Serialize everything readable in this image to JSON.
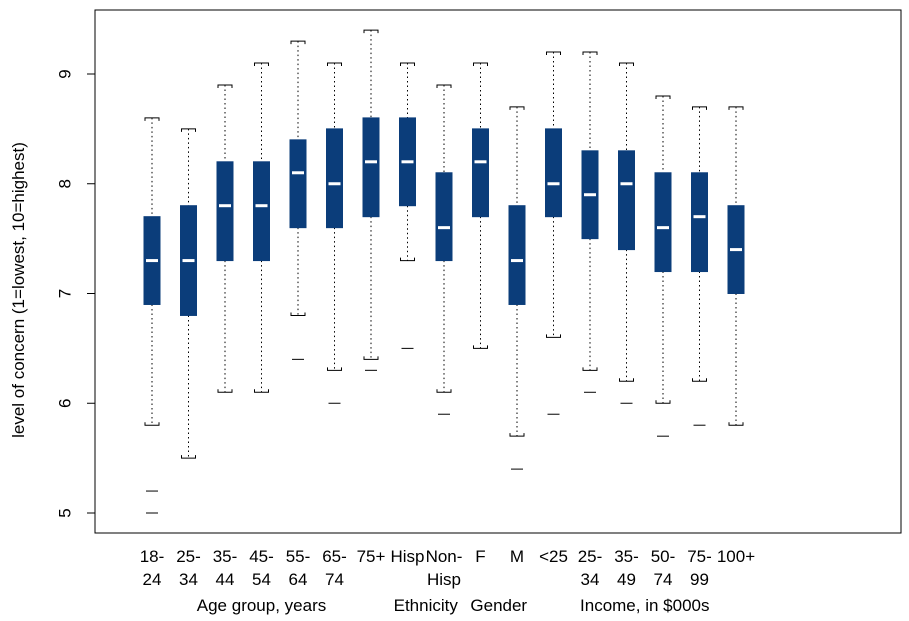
{
  "chart_data": {
    "type": "boxplot",
    "title": "",
    "ylabel": "level of concern (1=lowest, 10=highest)",
    "ylim": [
      4.9,
      9.5
    ],
    "yticks": [
      "5",
      "6",
      "7",
      "8",
      "9"
    ],
    "grid": false,
    "box_color": "#0b3d7a",
    "median_color": "#ffffff",
    "groups": [
      {
        "label": "Age group, years",
        "categories": 7
      },
      {
        "label": "Ethnicity",
        "categories": 2
      },
      {
        "label": "Gender",
        "categories": 2
      },
      {
        "label": "Income, in $000s",
        "categories": 6
      }
    ],
    "boxes": [
      {
        "label_line1": "18-",
        "label_line2": "24",
        "whisker_low": 5.8,
        "q1": 6.9,
        "median": 7.3,
        "q3": 7.7,
        "whisker_high": 8.6,
        "outliers": [
          5.2,
          5.0
        ]
      },
      {
        "label_line1": "25-",
        "label_line2": "34",
        "whisker_low": 5.5,
        "q1": 6.8,
        "median": 7.3,
        "q3": 7.8,
        "whisker_high": 8.5,
        "outliers": []
      },
      {
        "label_line1": "35-",
        "label_line2": "44",
        "whisker_low": 6.1,
        "q1": 7.3,
        "median": 7.8,
        "q3": 8.2,
        "whisker_high": 8.9,
        "outliers": []
      },
      {
        "label_line1": "45-",
        "label_line2": "54",
        "whisker_low": 6.1,
        "q1": 7.3,
        "median": 7.8,
        "q3": 8.2,
        "whisker_high": 9.1,
        "outliers": []
      },
      {
        "label_line1": "55-",
        "label_line2": "64",
        "whisker_low": 6.8,
        "q1": 7.6,
        "median": 8.1,
        "q3": 8.4,
        "whisker_high": 9.3,
        "outliers": [
          6.4
        ]
      },
      {
        "label_line1": "65-",
        "label_line2": "74",
        "whisker_low": 6.3,
        "q1": 7.6,
        "median": 8.0,
        "q3": 8.5,
        "whisker_high": 9.1,
        "outliers": [
          6.0
        ]
      },
      {
        "label_line1": "75+",
        "label_line2": "",
        "whisker_low": 6.4,
        "q1": 7.7,
        "median": 8.2,
        "q3": 8.6,
        "whisker_high": 9.4,
        "outliers": [
          6.3
        ]
      },
      {
        "label_line1": "Hisp",
        "label_line2": "",
        "whisker_low": 7.3,
        "q1": 7.8,
        "median": 8.2,
        "q3": 8.6,
        "whisker_high": 9.1,
        "outliers": [
          6.5
        ]
      },
      {
        "label_line1": "Non-",
        "label_line2": "Hisp",
        "whisker_low": 6.1,
        "q1": 7.3,
        "median": 7.6,
        "q3": 8.1,
        "whisker_high": 8.9,
        "outliers": [
          5.9
        ]
      },
      {
        "label_line1": "F",
        "label_line2": "",
        "whisker_low": 6.5,
        "q1": 7.7,
        "median": 8.2,
        "q3": 8.5,
        "whisker_high": 9.1,
        "outliers": []
      },
      {
        "label_line1": "M",
        "label_line2": "",
        "whisker_low": 5.7,
        "q1": 6.9,
        "median": 7.3,
        "q3": 7.8,
        "whisker_high": 8.7,
        "outliers": [
          5.4
        ]
      },
      {
        "label_line1": "<25",
        "label_line2": "",
        "whisker_low": 6.6,
        "q1": 7.7,
        "median": 8.0,
        "q3": 8.5,
        "whisker_high": 9.2,
        "outliers": [
          5.9
        ]
      },
      {
        "label_line1": "25-",
        "label_line2": "34",
        "whisker_low": 6.3,
        "q1": 7.5,
        "median": 7.9,
        "q3": 8.3,
        "whisker_high": 9.2,
        "outliers": [
          6.1
        ]
      },
      {
        "label_line1": "35-",
        "label_line2": "49",
        "whisker_low": 6.2,
        "q1": 7.4,
        "median": 8.0,
        "q3": 8.3,
        "whisker_high": 9.1,
        "outliers": [
          6.0
        ]
      },
      {
        "label_line1": "50-",
        "label_line2": "74",
        "whisker_low": 6.0,
        "q1": 7.2,
        "median": 7.6,
        "q3": 8.1,
        "whisker_high": 8.8,
        "outliers": [
          5.7
        ]
      },
      {
        "label_line1": "75-",
        "label_line2": "99",
        "whisker_low": 6.2,
        "q1": 7.2,
        "median": 7.7,
        "q3": 8.1,
        "whisker_high": 8.7,
        "outliers": [
          5.8
        ]
      },
      {
        "label_line1": "100+",
        "label_line2": "",
        "whisker_low": 5.8,
        "q1": 7.0,
        "median": 7.4,
        "q3": 7.8,
        "whisker_high": 8.7,
        "outliers": []
      }
    ]
  }
}
